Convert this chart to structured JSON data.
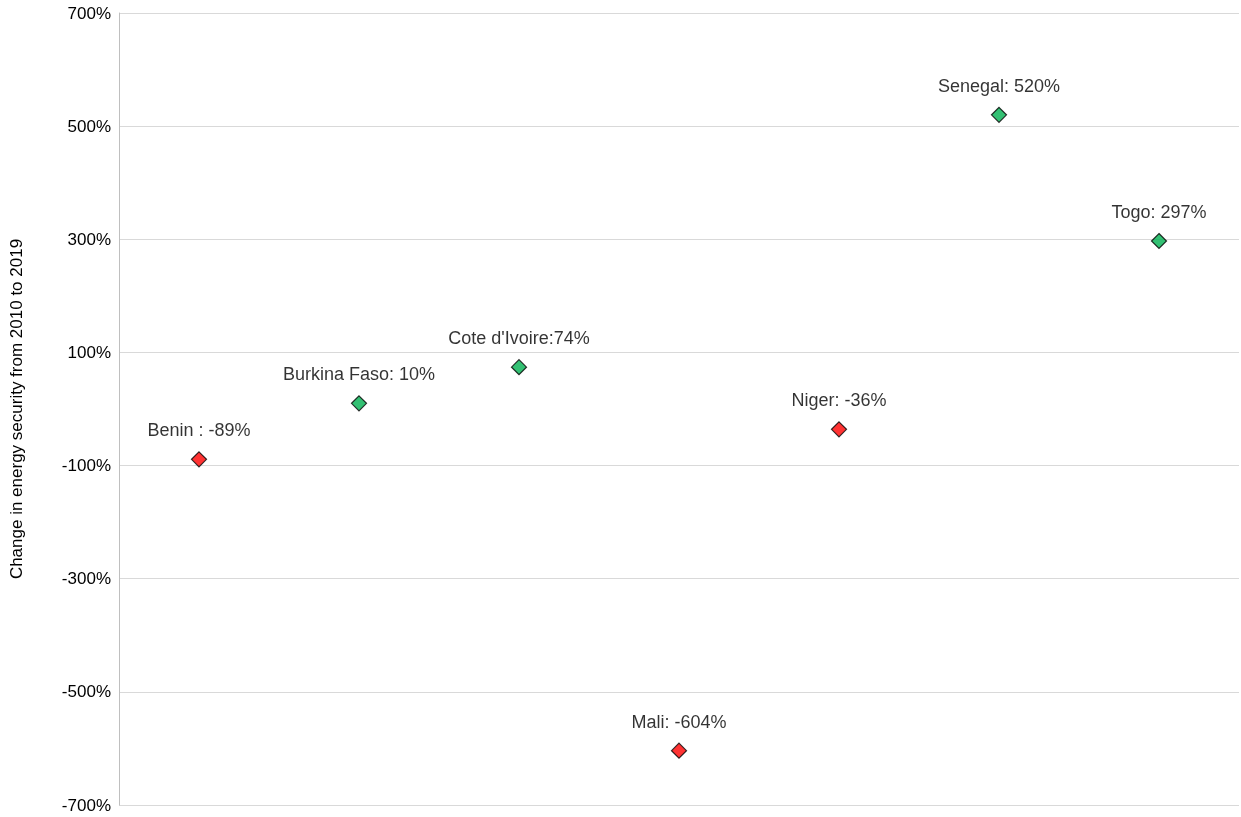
{
  "chart_data": {
    "type": "scatter",
    "ylabel": "Change in energy security from 2010 to 2019",
    "categories": [
      null,
      null,
      null,
      null,
      null,
      null,
      null
    ],
    "values": [
      -89,
      10,
      74,
      -604,
      -36,
      520,
      297
    ],
    "colors": [
      "#ff0000",
      "#00b050",
      "#00b050",
      "#ff0000",
      "#ff0000",
      "#00b050",
      "#00b050"
    ],
    "value_labels": [
      "Benin : -89%",
      "Burkina Faso: 10%",
      "Cote d'Ivoire:74%",
      "Mali: -604%",
      "Niger: -36%",
      "Senegal: 520%",
      "Togo: 297%"
    ],
    "ylim": [
      -700,
      700
    ],
    "yticks": [
      {
        "value": -700,
        "label": "-700%"
      },
      {
        "value": -500,
        "label": "-500%"
      },
      {
        "value": -300,
        "label": "-300%"
      },
      {
        "value": -100,
        "label": "-100%"
      },
      {
        "value": 100,
        "label": "100%"
      },
      {
        "value": 300,
        "label": "300%"
      },
      {
        "value": 500,
        "label": "500%"
      },
      {
        "value": 700,
        "label": "700%"
      }
    ],
    "grid": "y",
    "marker": "diamond",
    "tick_labels": "y"
  }
}
